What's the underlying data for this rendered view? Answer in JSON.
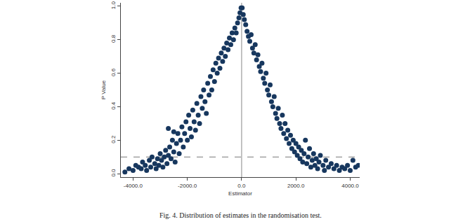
{
  "chart_data": {
    "type": "scatter",
    "caption": "Fig. 4. Distribution of estimates in the randomisation test.",
    "x_label": "Estimator",
    "y_label": "P Value",
    "color": "#17375e",
    "marker": "circle",
    "grid": false,
    "xlim": [
      -4450,
      4350
    ],
    "ylim": [
      -0.02,
      1.02
    ],
    "xticks": [
      {
        "value": -4000,
        "label": "-4000.0"
      },
      {
        "value": -2000,
        "label": "-2000.0"
      },
      {
        "value": 0,
        "label": "0.0"
      },
      {
        "value": 2000,
        "label": "2000.0"
      },
      {
        "value": 4000,
        "label": "4000.0"
      }
    ],
    "yticks": [
      {
        "value": 0,
        "label": "0.0"
      },
      0.2,
      0.4,
      0.6,
      0.8,
      {
        "value": 1,
        "label": "1.0"
      }
    ],
    "reference_lines": [
      {
        "axis": "x",
        "value": 0,
        "line_style": "solid"
      },
      {
        "axis": "y",
        "value": 0.1,
        "line_style": "dashed"
      }
    ],
    "x": [
      -4300,
      -4150,
      -4000,
      -3900,
      -3800,
      -3700,
      -3650,
      -3550,
      -3500,
      -3400,
      -3350,
      -3300,
      -3200,
      -3150,
      -3100,
      -3050,
      -3000,
      -2950,
      -2900,
      -2850,
      -2800,
      -2750,
      -2700,
      -2700,
      -2650,
      -2600,
      -2550,
      -2500,
      -2500,
      -2450,
      -2400,
      -2350,
      -2300,
      -2250,
      -2200,
      -2150,
      -2100,
      -2050,
      -2000,
      -1950,
      -1900,
      -1850,
      -1800,
      -1750,
      -1700,
      -1650,
      -1600,
      -1550,
      -1500,
      -1450,
      -1400,
      -1350,
      -1300,
      -1250,
      -1200,
      -1150,
      -1100,
      -1050,
      -1000,
      -950,
      -900,
      -850,
      -800,
      -750,
      -700,
      -650,
      -600,
      -550,
      -500,
      -450,
      -400,
      -350,
      -300,
      -250,
      -200,
      -150,
      -100,
      -60,
      -20,
      20,
      60,
      100,
      150,
      200,
      250,
      300,
      350,
      400,
      450,
      500,
      550,
      600,
      650,
      700,
      750,
      800,
      850,
      900,
      950,
      1000,
      1050,
      1100,
      1150,
      1200,
      1250,
      1300,
      1350,
      1400,
      1450,
      1500,
      1550,
      1600,
      1650,
      1700,
      1750,
      1800,
      1850,
      1900,
      1950,
      2000,
      2050,
      2100,
      2150,
      2200,
      2250,
      2300,
      2350,
      2400,
      2450,
      2500,
      2550,
      2600,
      2650,
      2700,
      2750,
      2800,
      2850,
      2900,
      3000,
      3050,
      3100,
      3200,
      3300,
      3400,
      3500,
      3600,
      3700,
      3800,
      3900,
      4000,
      4100,
      4200,
      4300
    ],
    "values": [
      0.01,
      0.03,
      0.02,
      0.05,
      0.04,
      0.03,
      0.07,
      0.05,
      0.02,
      0.08,
      0.04,
      0.1,
      0.06,
      0.03,
      0.09,
      0.05,
      0.12,
      0.08,
      0.04,
      0.1,
      0.14,
      0.06,
      0.27,
      0.11,
      0.16,
      0.09,
      0.2,
      0.13,
      0.25,
      0.07,
      0.18,
      0.24,
      0.12,
      0.2,
      0.28,
      0.16,
      0.24,
      0.31,
      0.2,
      0.35,
      0.27,
      0.22,
      0.38,
      0.31,
      0.26,
      0.42,
      0.35,
      0.3,
      0.46,
      0.39,
      0.5,
      0.43,
      0.36,
      0.54,
      0.47,
      0.58,
      0.5,
      0.62,
      0.55,
      0.66,
      0.6,
      0.69,
      0.63,
      0.72,
      0.67,
      0.75,
      0.7,
      0.78,
      0.74,
      0.81,
      0.77,
      0.84,
      0.8,
      0.87,
      0.84,
      0.9,
      0.93,
      0.96,
      0.99,
      0.99,
      0.95,
      0.92,
      0.89,
      0.85,
      0.82,
      0.79,
      0.83,
      0.75,
      0.72,
      0.77,
      0.68,
      0.71,
      0.64,
      0.61,
      0.66,
      0.57,
      0.54,
      0.6,
      0.5,
      0.47,
      0.53,
      0.43,
      0.4,
      0.46,
      0.36,
      0.33,
      0.39,
      0.3,
      0.27,
      0.35,
      0.24,
      0.3,
      0.21,
      0.26,
      0.18,
      0.23,
      0.15,
      0.2,
      0.13,
      0.18,
      0.11,
      0.16,
      0.09,
      0.14,
      0.07,
      0.12,
      0.2,
      0.06,
      0.1,
      0.15,
      0.04,
      0.08,
      0.12,
      0.05,
      0.09,
      0.03,
      0.07,
      0.11,
      0.05,
      0.02,
      0.08,
      0.04,
      0.06,
      0.03,
      0.05,
      0.02,
      0.04,
      0.03,
      0.05,
      0.02,
      0.08,
      0.04,
      0.05
    ]
  }
}
